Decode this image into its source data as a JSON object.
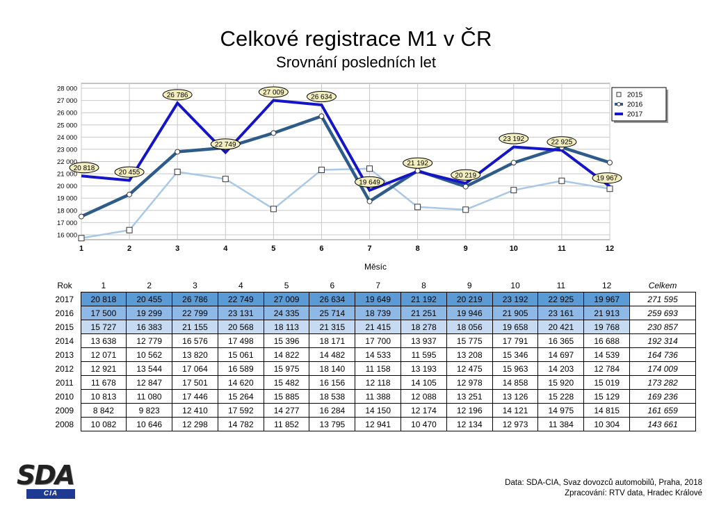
{
  "chart_data": {
    "type": "line",
    "title": "Celkové registrace M1 v ČR",
    "subtitle": "Srovnání posledních let",
    "xlabel": "Měsíc",
    "x": [
      1,
      2,
      3,
      4,
      5,
      6,
      7,
      8,
      9,
      10,
      11,
      12
    ],
    "yticks": [
      16000,
      17000,
      18000,
      19000,
      20000,
      21000,
      22000,
      23000,
      24000,
      25000,
      26000,
      27000,
      28000
    ],
    "ytick_labels": [
      "16 000",
      "17 000",
      "18 000",
      "19 000",
      "20 000",
      "21 000",
      "22 000",
      "23 000",
      "24 000",
      "25 000",
      "26 000",
      "27 000",
      "28 000"
    ],
    "ylim": [
      15600,
      28400
    ],
    "grid": true,
    "legend_position": "right",
    "series": [
      {
        "name": "2015",
        "values": [
          15727,
          16383,
          21155,
          20568,
          18113,
          21315,
          21415,
          18278,
          18056,
          19658,
          20421,
          19768
        ],
        "color": "#a9c8e8",
        "marker": "square"
      },
      {
        "name": "2016",
        "values": [
          17500,
          19299,
          22799,
          23131,
          24335,
          25714,
          18739,
          21251,
          19946,
          21905,
          23161,
          21913
        ],
        "color": "#2e5c8a",
        "marker": "circle"
      },
      {
        "name": "2017",
        "values": [
          20818,
          20455,
          26786,
          22749,
          27009,
          26634,
          19649,
          21192,
          20219,
          23192,
          22925,
          19967
        ],
        "color": "#1515c8",
        "marker": "none",
        "data_labels": [
          "20 818",
          "20 455",
          "26 786",
          "22 749",
          "27 009",
          "26 634",
          "19 649",
          "21 192",
          "20 219",
          "23 192",
          "22 925",
          "19 967"
        ]
      }
    ]
  },
  "table": {
    "header": {
      "rok": "Rok",
      "months": [
        "1",
        "2",
        "3",
        "4",
        "5",
        "6",
        "7",
        "8",
        "9",
        "10",
        "11",
        "12"
      ],
      "total": "Celkem"
    },
    "rows": [
      {
        "year": "2017",
        "values": [
          "20 818",
          "20 455",
          "26 786",
          "22 749",
          "27 009",
          "26 634",
          "19 649",
          "21 192",
          "20 219",
          "23 192",
          "22 925",
          "19 967"
        ],
        "total": "271 595"
      },
      {
        "year": "2016",
        "values": [
          "17 500",
          "19 299",
          "22 799",
          "23 131",
          "24 335",
          "25 714",
          "18 739",
          "21 251",
          "19 946",
          "21 905",
          "23 161",
          "21 913"
        ],
        "total": "259 693"
      },
      {
        "year": "2015",
        "values": [
          "15 727",
          "16 383",
          "21 155",
          "20 568",
          "18 113",
          "21 315",
          "21 415",
          "18 278",
          "18 056",
          "19 658",
          "20 421",
          "19 768"
        ],
        "total": "230 857"
      },
      {
        "year": "2014",
        "values": [
          "13 638",
          "12 779",
          "16 576",
          "17 498",
          "15 396",
          "18 171",
          "17 700",
          "13 937",
          "15 775",
          "17 791",
          "16 365",
          "16 688"
        ],
        "total": "192 314"
      },
      {
        "year": "2013",
        "values": [
          "12 071",
          "10 562",
          "13 820",
          "15 061",
          "14 822",
          "14 482",
          "14 533",
          "11 595",
          "13 208",
          "15 346",
          "14 697",
          "14 539"
        ],
        "total": "164 736"
      },
      {
        "year": "2012",
        "values": [
          "12 921",
          "13 544",
          "17 064",
          "16 589",
          "15 975",
          "18 140",
          "11 158",
          "13 193",
          "12 475",
          "15 963",
          "14 203",
          "12 784"
        ],
        "total": "174 009"
      },
      {
        "year": "2011",
        "values": [
          "11 678",
          "12 847",
          "17 501",
          "14 620",
          "15 482",
          "16 156",
          "12 118",
          "14 105",
          "12 978",
          "14 858",
          "15 920",
          "15 019"
        ],
        "total": "173 282"
      },
      {
        "year": "2010",
        "values": [
          "10 813",
          "11 080",
          "17 446",
          "15 264",
          "15 885",
          "18 538",
          "11 388",
          "12 088",
          "13 251",
          "13 126",
          "15 228",
          "15 129"
        ],
        "total": "169 236"
      },
      {
        "year": "2009",
        "values": [
          "8 842",
          "9 823",
          "12 410",
          "17 592",
          "14 277",
          "16 284",
          "14 150",
          "12 174",
          "12 196",
          "14 121",
          "14 975",
          "14 815"
        ],
        "total": "161 659"
      },
      {
        "year": "2008",
        "values": [
          "10 082",
          "10 646",
          "12 298",
          "14 782",
          "11 852",
          "13 795",
          "12 941",
          "10 470",
          "12 134",
          "12 973",
          "11 384",
          "10 304"
        ],
        "total": "143 661"
      }
    ]
  },
  "logo": {
    "main": "SDA",
    "sub": "CIA"
  },
  "source": {
    "line1": "Data: SDA-CIA, Svaz dovozců automobilů, Praha, 2018",
    "line2": "Zpracování: RTV data, Hradec Králové"
  }
}
